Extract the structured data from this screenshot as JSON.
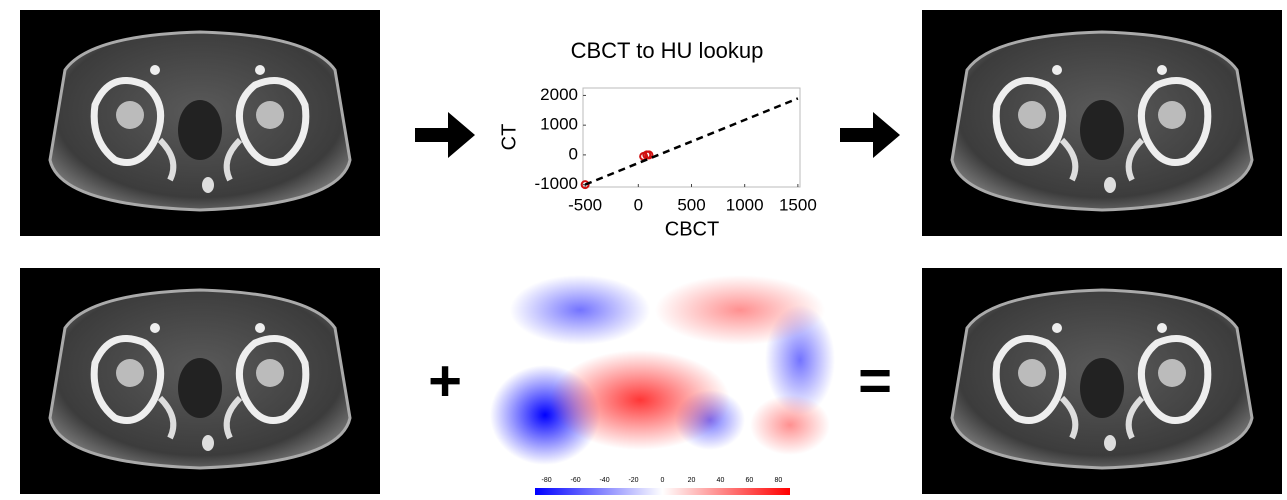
{
  "chart_data": {
    "type": "scatter",
    "title": "CBCT to HU lookup",
    "x_label": "CBCT",
    "y_label": "CT",
    "xlim": [
      -520,
      1520
    ],
    "ylim": [
      -1080,
      2250
    ],
    "xticks": [
      -500,
      0,
      500,
      1000,
      1500
    ],
    "yticks": [
      -1000,
      0,
      1000,
      2000
    ],
    "series": [
      {
        "color": "#d01010",
        "style": "markers",
        "x": [
          -500,
          50,
          80,
          100
        ],
        "values": [
          -1000,
          -50,
          0,
          0
        ]
      },
      {
        "color": "#000000",
        "style": "dashed",
        "x": [
          -500,
          1500
        ],
        "values": [
          -1000,
          1900
        ]
      }
    ]
  },
  "operators": [
    "+",
    "="
  ],
  "colorbar": {
    "lim": [
      -88,
      88
    ],
    "ticks": [
      -80,
      -60,
      -40,
      -20,
      0,
      20,
      40,
      60,
      80
    ],
    "colors": [
      "#0000ff",
      "#ffffff",
      "#ff0000"
    ]
  }
}
